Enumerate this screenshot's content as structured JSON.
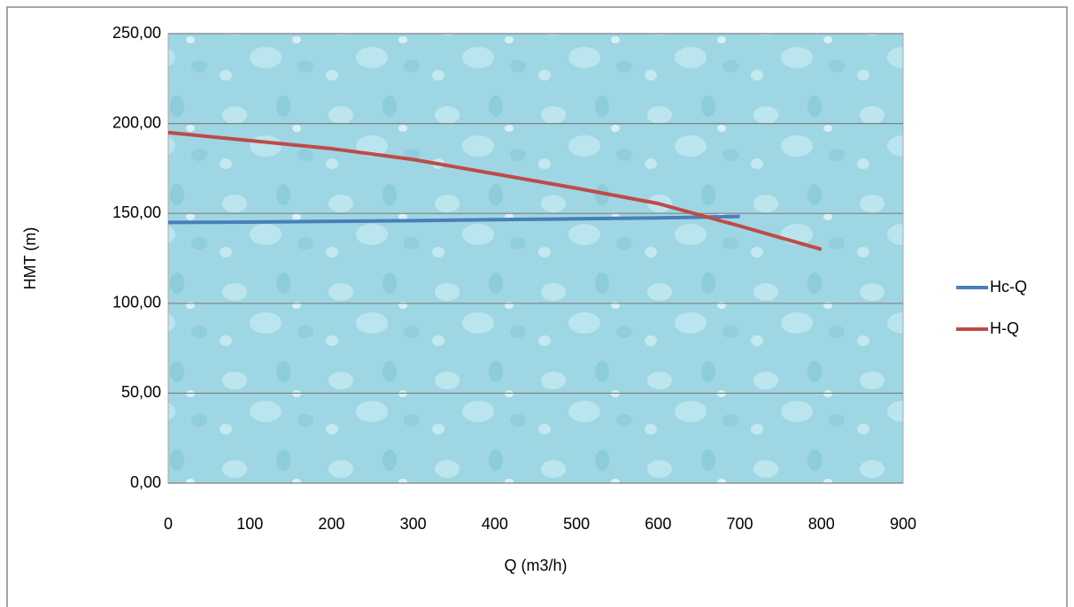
{
  "chart_data": {
    "type": "line",
    "x_label": "Q  (m3/h)",
    "y_label": "HMT (m)",
    "x": [
      0,
      100,
      200,
      300,
      400,
      500,
      600,
      700,
      800
    ],
    "series": [
      {
        "name": "Hc-Q",
        "color": "#4a7ebb",
        "values": [
          145,
          145.2,
          145.6,
          146,
          146.5,
          147,
          147.5,
          148.3,
          null
        ]
      },
      {
        "name": "H-Q",
        "color": "#be4b48",
        "values": [
          195,
          190.5,
          186,
          180,
          172,
          164,
          155.5,
          143,
          130
        ]
      }
    ],
    "xlim": [
      0,
      900
    ],
    "xticks": [
      0,
      100,
      200,
      300,
      400,
      500,
      600,
      700,
      800,
      900
    ],
    "ylim": [
      0,
      250
    ],
    "yticks": [
      {
        "value": 0,
        "label": "0,00"
      },
      {
        "value": 50,
        "label": "50,00"
      },
      {
        "value": 100,
        "label": "100,00"
      },
      {
        "value": 150,
        "label": "150,00"
      },
      {
        "value": 200,
        "label": "200,00"
      },
      {
        "value": 250,
        "label": "250,00"
      }
    ],
    "grid": true,
    "legend": "right"
  }
}
